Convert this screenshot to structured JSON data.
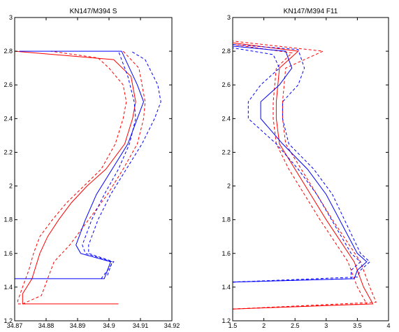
{
  "chart_data": [
    {
      "type": "line",
      "title": "KN147/M394 S",
      "xlabel": "",
      "ylabel": "",
      "xlim": [
        34.87,
        34.92
      ],
      "ylim": [
        1.2,
        3.0
      ],
      "xticks": [
        "34.87",
        "34.88",
        "34.89",
        "34.9",
        "34.91",
        "34.92"
      ],
      "yticks": [
        "1.2",
        "1.4",
        "1.6",
        "1.8",
        "2",
        "2.2",
        "2.4",
        "2.6",
        "2.8",
        "3"
      ],
      "grid": false,
      "series": [
        {
          "color": "#ff0000",
          "style": "solid",
          "x": [
            34.903,
            34.8775,
            34.8725,
            34.8725,
            34.8755,
            34.878,
            34.8805,
            34.884,
            34.888,
            34.893,
            34.899,
            34.905,
            34.9075,
            34.9085,
            34.907,
            34.9015,
            34.87
          ],
          "y": [
            1.3,
            1.3,
            1.3,
            1.36,
            1.45,
            1.6,
            1.7,
            1.8,
            1.9,
            2.0,
            2.1,
            2.25,
            2.4,
            2.5,
            2.65,
            2.75,
            2.8
          ]
        },
        {
          "color": "#ff0000",
          "style": "dashed",
          "x": [
            34.8735,
            34.871,
            34.871,
            34.8725,
            34.8745,
            34.876,
            34.878,
            34.882,
            34.8865,
            34.892,
            34.8975,
            34.902,
            34.9045,
            34.9055,
            34.9045,
            34.9,
            34.8965,
            34.8815
          ],
          "y": [
            1.3,
            1.3,
            1.32,
            1.4,
            1.5,
            1.6,
            1.7,
            1.8,
            1.9,
            2.0,
            2.1,
            2.25,
            2.4,
            2.5,
            2.6,
            2.7,
            2.76,
            2.8
          ]
        },
        {
          "color": "#ff0000",
          "style": "dashed",
          "x": [
            34.8725,
            34.8785,
            34.8805,
            34.8825,
            34.8875,
            34.8935,
            34.8995,
            34.9045,
            34.909,
            34.911,
            34.9115,
            34.9095,
            34.9045
          ],
          "y": [
            1.3,
            1.35,
            1.45,
            1.55,
            1.65,
            1.8,
            1.95,
            2.1,
            2.25,
            2.4,
            2.5,
            2.7,
            2.8
          ]
        },
        {
          "color": "#0000ff",
          "style": "solid",
          "x": [
            34.87,
            34.8985,
            34.9005,
            34.891,
            34.8895,
            34.8925,
            34.896,
            34.901,
            34.906,
            34.909,
            34.911,
            34.909,
            34.904,
            34.8715
          ],
          "y": [
            1.45,
            1.45,
            1.55,
            1.6,
            1.65,
            1.8,
            1.95,
            2.1,
            2.25,
            2.4,
            2.5,
            2.6,
            2.8,
            2.8
          ]
        },
        {
          "color": "#0000ff",
          "style": "dashed",
          "x": [
            34.8995,
            34.901,
            34.8925,
            34.8915,
            34.8945,
            34.8985,
            34.903,
            34.9065,
            34.9085,
            34.908,
            34.906,
            34.903
          ],
          "y": [
            1.47,
            1.55,
            1.6,
            1.65,
            1.8,
            1.95,
            2.1,
            2.25,
            2.4,
            2.5,
            2.65,
            2.8
          ]
        },
        {
          "color": "#0000ff",
          "style": "dashed",
          "x": [
            34.8975,
            34.9015,
            34.8935,
            34.8935,
            34.8965,
            34.9005,
            34.9055,
            34.9105,
            34.9145,
            34.9165,
            34.9155,
            34.9115,
            34.907
          ],
          "y": [
            1.45,
            1.55,
            1.6,
            1.65,
            1.8,
            1.95,
            2.1,
            2.25,
            2.4,
            2.5,
            2.6,
            2.75,
            2.8
          ]
        }
      ]
    },
    {
      "type": "line",
      "title": "KN147/M394 F11",
      "xlabel": "",
      "ylabel": "",
      "xlim": [
        1.5,
        4.0
      ],
      "ylim": [
        1.2,
        3.0
      ],
      "xticks": [
        "1.5",
        "2",
        "2.5",
        "3",
        "3.5",
        "4"
      ],
      "yticks": [
        "1.2",
        "1.4",
        "1.6",
        "1.8",
        "2",
        "2.2",
        "2.4",
        "2.6",
        "2.8",
        "3"
      ],
      "grid": false,
      "series": [
        {
          "color": "#ff0000",
          "style": "solid",
          "x": [
            1.5,
            3.75,
            3.6,
            3.45,
            3.0,
            2.75,
            2.5,
            2.25,
            2.2,
            2.2,
            2.25,
            2.55,
            1.5
          ],
          "y": [
            1.27,
            1.3,
            1.4,
            1.55,
            1.8,
            1.95,
            2.1,
            2.25,
            2.4,
            2.5,
            2.7,
            2.8,
            2.85
          ]
        },
        {
          "color": "#ff0000",
          "style": "dashed",
          "x": [
            1.5,
            3.65,
            3.5,
            3.35,
            2.9,
            2.65,
            2.4,
            2.2,
            2.15,
            2.15,
            2.2,
            2.45,
            1.5
          ],
          "y": [
            1.27,
            1.3,
            1.4,
            1.55,
            1.8,
            1.95,
            2.1,
            2.25,
            2.4,
            2.5,
            2.7,
            2.79,
            2.84
          ]
        },
        {
          "color": "#ff0000",
          "style": "dashed",
          "x": [
            1.5,
            3.8,
            3.7,
            3.55,
            3.1,
            2.85,
            2.6,
            2.35,
            2.3,
            2.3,
            2.35,
            2.95,
            1.5
          ],
          "y": [
            1.27,
            1.31,
            1.4,
            1.55,
            1.8,
            1.95,
            2.1,
            2.25,
            2.4,
            2.5,
            2.7,
            2.8,
            2.86
          ]
        },
        {
          "color": "#0000ff",
          "style": "solid",
          "x": [
            1.5,
            3.45,
            3.5,
            3.65,
            3.5,
            3.0,
            2.7,
            2.3,
            1.95,
            1.95,
            2.25,
            2.45,
            2.35,
            1.5
          ],
          "y": [
            1.43,
            1.45,
            1.5,
            1.55,
            1.6,
            1.95,
            2.1,
            2.25,
            2.4,
            2.5,
            2.6,
            2.7,
            2.8,
            2.83
          ]
        },
        {
          "color": "#0000ff",
          "style": "dashed",
          "x": [
            1.5,
            3.4,
            3.4,
            3.55,
            3.4,
            2.85,
            2.55,
            2.2,
            1.75,
            1.75,
            1.95,
            2.25,
            2.15,
            1.5
          ],
          "y": [
            1.43,
            1.45,
            1.5,
            1.55,
            1.6,
            1.95,
            2.1,
            2.25,
            2.4,
            2.5,
            2.6,
            2.7,
            2.78,
            2.82
          ]
        },
        {
          "color": "#0000ff",
          "style": "dashed",
          "x": [
            1.5,
            3.5,
            3.55,
            3.7,
            3.55,
            3.1,
            2.8,
            2.4,
            2.3,
            2.3,
            2.55,
            2.65,
            2.55,
            1.5
          ],
          "y": [
            1.43,
            1.46,
            1.5,
            1.55,
            1.6,
            1.95,
            2.1,
            2.25,
            2.4,
            2.5,
            2.6,
            2.7,
            2.81,
            2.84
          ]
        }
      ]
    }
  ]
}
